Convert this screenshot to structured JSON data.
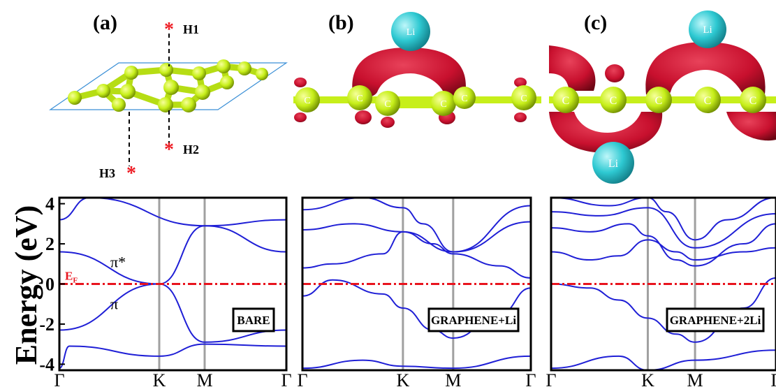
{
  "panel_labels": [
    "(a)",
    "(b)",
    "(c)"
  ],
  "structure": {
    "site_labels": [
      "H1",
      "H2",
      "H3"
    ]
  },
  "atoms": {
    "carbon": "C",
    "lithium": "Li"
  },
  "colors": {
    "band_line": "#1f1fd6",
    "fermi_line": "#e8141e",
    "carbon": "#c7ef1a",
    "lithium": "#2ec9d2",
    "charge_density": "#c8102e",
    "symmetry_line": "#a0a0a0",
    "site_marker": "#ee1c24"
  },
  "chart_data": [
    {
      "type": "line",
      "ylabel": "Energy (eV)",
      "ylim": [
        -4.3,
        4.3
      ],
      "yticks": [
        4,
        2,
        0,
        -2,
        -4
      ],
      "xticks": [
        "Γ",
        "K",
        "M",
        "Γ"
      ],
      "fermi_label": "E",
      "fermi_sub": "F",
      "box_label": "BARE",
      "annotations": [
        "π*",
        "π"
      ],
      "series": [
        {
          "x": [
            0,
            1,
            1.5,
            2
          ],
          "y": [
            -2.3,
            0,
            -2.9,
            -2.3
          ]
        },
        {
          "x": [
            0,
            1,
            1.5,
            2
          ],
          "y": [
            1.6,
            0,
            2.9,
            1.6
          ]
        },
        {
          "x": [
            0,
            0.1,
            1,
            1.5,
            2
          ],
          "y": [
            -4.2,
            -3.1,
            -3.6,
            -3.0,
            -3.1
          ]
        },
        {
          "x": [
            0,
            0.3,
            1.5,
            2
          ],
          "y": [
            3.2,
            4.3,
            2.9,
            3.2
          ]
        }
      ]
    },
    {
      "type": "line",
      "ylim": [
        -4.3,
        4.3
      ],
      "xticks": [
        "Γ",
        "K",
        "M",
        "Γ"
      ],
      "box_label": "GRAPHENE+Li",
      "series": [
        {
          "x": [
            0,
            0.3,
            0.8,
            1,
            1.3,
            1.5,
            1.8,
            2
          ],
          "y": [
            -0.6,
            0.2,
            -0.5,
            -1.2,
            -2.3,
            -2.7,
            -1.5,
            -0.2
          ]
        },
        {
          "x": [
            0,
            0.3,
            0.8,
            1,
            1.3,
            1.5,
            1.8,
            2
          ],
          "y": [
            0.8,
            1.0,
            1.5,
            2.6,
            2.0,
            1.5,
            0.9,
            0.3
          ]
        },
        {
          "x": [
            0,
            0.5,
            1,
            1.5,
            2
          ],
          "y": [
            2.7,
            3.0,
            2.6,
            1.6,
            3.1
          ]
        },
        {
          "x": [
            0,
            0.6,
            1,
            1.2,
            1.5,
            2
          ],
          "y": [
            3.7,
            4.3,
            3.8,
            3.0,
            1.6,
            3.9
          ]
        },
        {
          "x": [
            0,
            0.6,
            1,
            1.5,
            2
          ],
          "y": [
            -4.2,
            -3.8,
            -4.1,
            -4.2,
            -3.6
          ]
        }
      ]
    },
    {
      "type": "line",
      "ylim": [
        -4.3,
        4.3
      ],
      "xticks": [
        "Γ",
        "K",
        "M",
        "Γ"
      ],
      "box_label": "GRAPHENE+2Li",
      "series": [
        {
          "x": [
            0,
            0.4,
            0.7,
            1,
            1.3,
            1.5,
            1.8,
            2
          ],
          "y": [
            0.0,
            -0.2,
            -0.8,
            -1.7,
            -2.5,
            -2.9,
            -1.2,
            0.3
          ]
        },
        {
          "x": [
            0,
            0.4,
            0.7,
            1,
            1.3,
            1.5,
            1.8,
            2
          ],
          "y": [
            1.6,
            1.2,
            1.4,
            2.2,
            1.6,
            1.2,
            1.6,
            1.8
          ]
        },
        {
          "x": [
            0,
            0.4,
            0.8,
            1,
            1.3,
            1.5,
            1.8,
            2
          ],
          "y": [
            2.8,
            2.6,
            3.0,
            2.4,
            1.2,
            0.9,
            2.0,
            3.0
          ]
        },
        {
          "x": [
            0,
            0.5,
            1,
            1.5,
            2
          ],
          "y": [
            3.6,
            3.4,
            3.8,
            1.8,
            3.5
          ]
        },
        {
          "x": [
            0,
            0.6,
            1,
            1.2,
            1.5,
            1.7,
            2
          ],
          "y": [
            4.3,
            3.9,
            4.3,
            3.6,
            2.2,
            3.2,
            4.3
          ]
        },
        {
          "x": [
            0,
            0.7,
            1,
            1.5,
            2
          ],
          "y": [
            -4.2,
            -3.6,
            -4.3,
            -3.8,
            -3.3
          ]
        }
      ]
    }
  ]
}
